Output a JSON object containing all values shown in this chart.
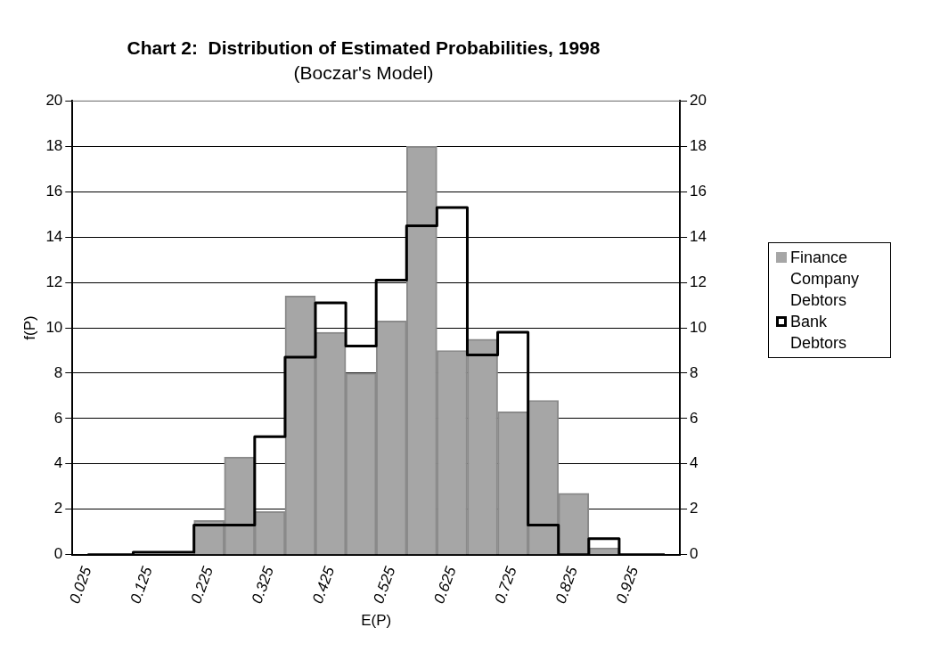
{
  "chart_data": {
    "type": "bar",
    "title": "Chart 2:  Distribution of Estimated Probabilities, 1998",
    "subtitle": "(Boczar's Model)",
    "xlabel": "E(P)",
    "ylabel": "f(P)",
    "categories": [
      "0.025",
      null,
      "0.125",
      null,
      "0.225",
      null,
      "0.325",
      null,
      "0.425",
      null,
      "0.525",
      null,
      "0.625",
      null,
      "0.725",
      null,
      "0.825",
      null,
      "0.925",
      null
    ],
    "series": [
      {
        "name": "Finance Company Debtors",
        "color": "#a6a6a6",
        "values": [
          0,
          0,
          0,
          0,
          1.5,
          4.3,
          1.9,
          11.4,
          9.8,
          8.0,
          10.3,
          18.0,
          9.0,
          9.5,
          6.3,
          6.8,
          2.7,
          0.3,
          0,
          0
        ]
      },
      {
        "name": "Bank Debtors",
        "type": "step",
        "color": "#000000",
        "values": [
          0,
          0,
          0.1,
          0.1,
          1.3,
          1.3,
          5.2,
          8.7,
          11.1,
          9.2,
          12.1,
          14.5,
          15.3,
          8.8,
          9.8,
          1.3,
          0,
          0.7,
          0,
          0
        ]
      }
    ],
    "ylim": [
      0,
      20
    ],
    "yticks": [
      0,
      2,
      4,
      6,
      8,
      10,
      12,
      14,
      16,
      18,
      20
    ],
    "y2lim": [
      0,
      20
    ],
    "y2ticks": [
      0,
      2,
      4,
      6,
      8,
      10,
      12,
      14,
      16,
      18,
      20
    ],
    "grid": "y",
    "legend": "right"
  }
}
